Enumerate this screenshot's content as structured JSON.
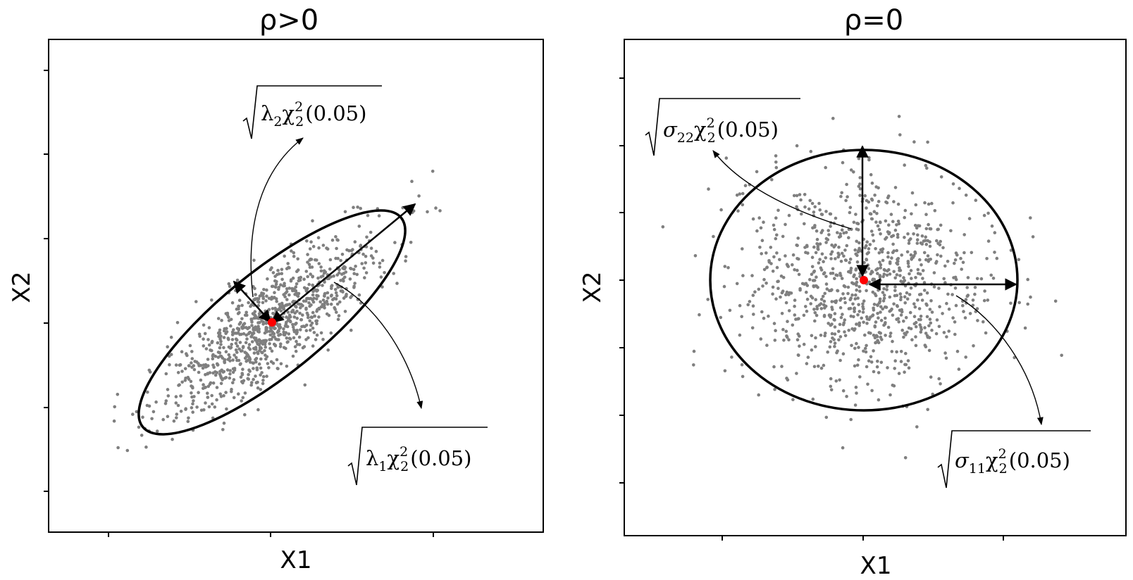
{
  "chart_data": [
    {
      "type": "scatter",
      "title": "ρ>0",
      "xlabel": "X1",
      "ylabel": "X2",
      "tick_labels_visible": false,
      "correlation": "positive",
      "point_color": "#7f7f7f",
      "n_points_approx": 1000,
      "series": [
        {
          "kind": "sample-points",
          "values": "bivariate normal sample, positively correlated"
        }
      ],
      "center_point": {
        "x": 0,
        "y": 0,
        "color": "#ff0000"
      },
      "ellipse": {
        "level": 0.05,
        "major_axis_angle_deg": 39,
        "major_semi_axis_rel": 3.04,
        "minor_semi_axis_rel": 0.94
      },
      "annotations": [
        {
          "id": "lambda2",
          "radicand": "λ",
          "radicand_sub": "2",
          "chi": "χ",
          "chi_sup": "2",
          "chi_sub": "2",
          "arg": "(0.05)"
        },
        {
          "id": "lambda1",
          "radicand": "λ",
          "radicand_sub": "1",
          "chi": "χ",
          "chi_sup": "2",
          "chi_sub": "2",
          "arg": "(0.05)"
        }
      ]
    },
    {
      "type": "scatter",
      "title": "ρ=0",
      "xlabel": "X1",
      "ylabel": "X2",
      "tick_labels_visible": false,
      "correlation": "none",
      "point_color": "#7f7f7f",
      "n_points_approx": 1000,
      "series": [
        {
          "kind": "sample-points",
          "values": "bivariate normal sample, uncorrelated"
        }
      ],
      "center_point": {
        "x": 0,
        "y": 0,
        "color": "#ff0000"
      },
      "ellipse": {
        "level": 0.05,
        "major_axis_angle_deg": 0,
        "x_semi_axis_rel": 2.45,
        "y_semi_axis_rel": 2.45
      },
      "annotations": [
        {
          "id": "sigma22",
          "radicand": "σ",
          "radicand_sub": "22",
          "chi": "χ",
          "chi_sup": "2",
          "chi_sub": "2",
          "arg": "(0.05)"
        },
        {
          "id": "sigma11",
          "radicand": "σ",
          "radicand_sub": "11",
          "chi": "χ",
          "chi_sup": "2",
          "chi_sub": "2",
          "arg": "(0.05)"
        }
      ]
    }
  ]
}
